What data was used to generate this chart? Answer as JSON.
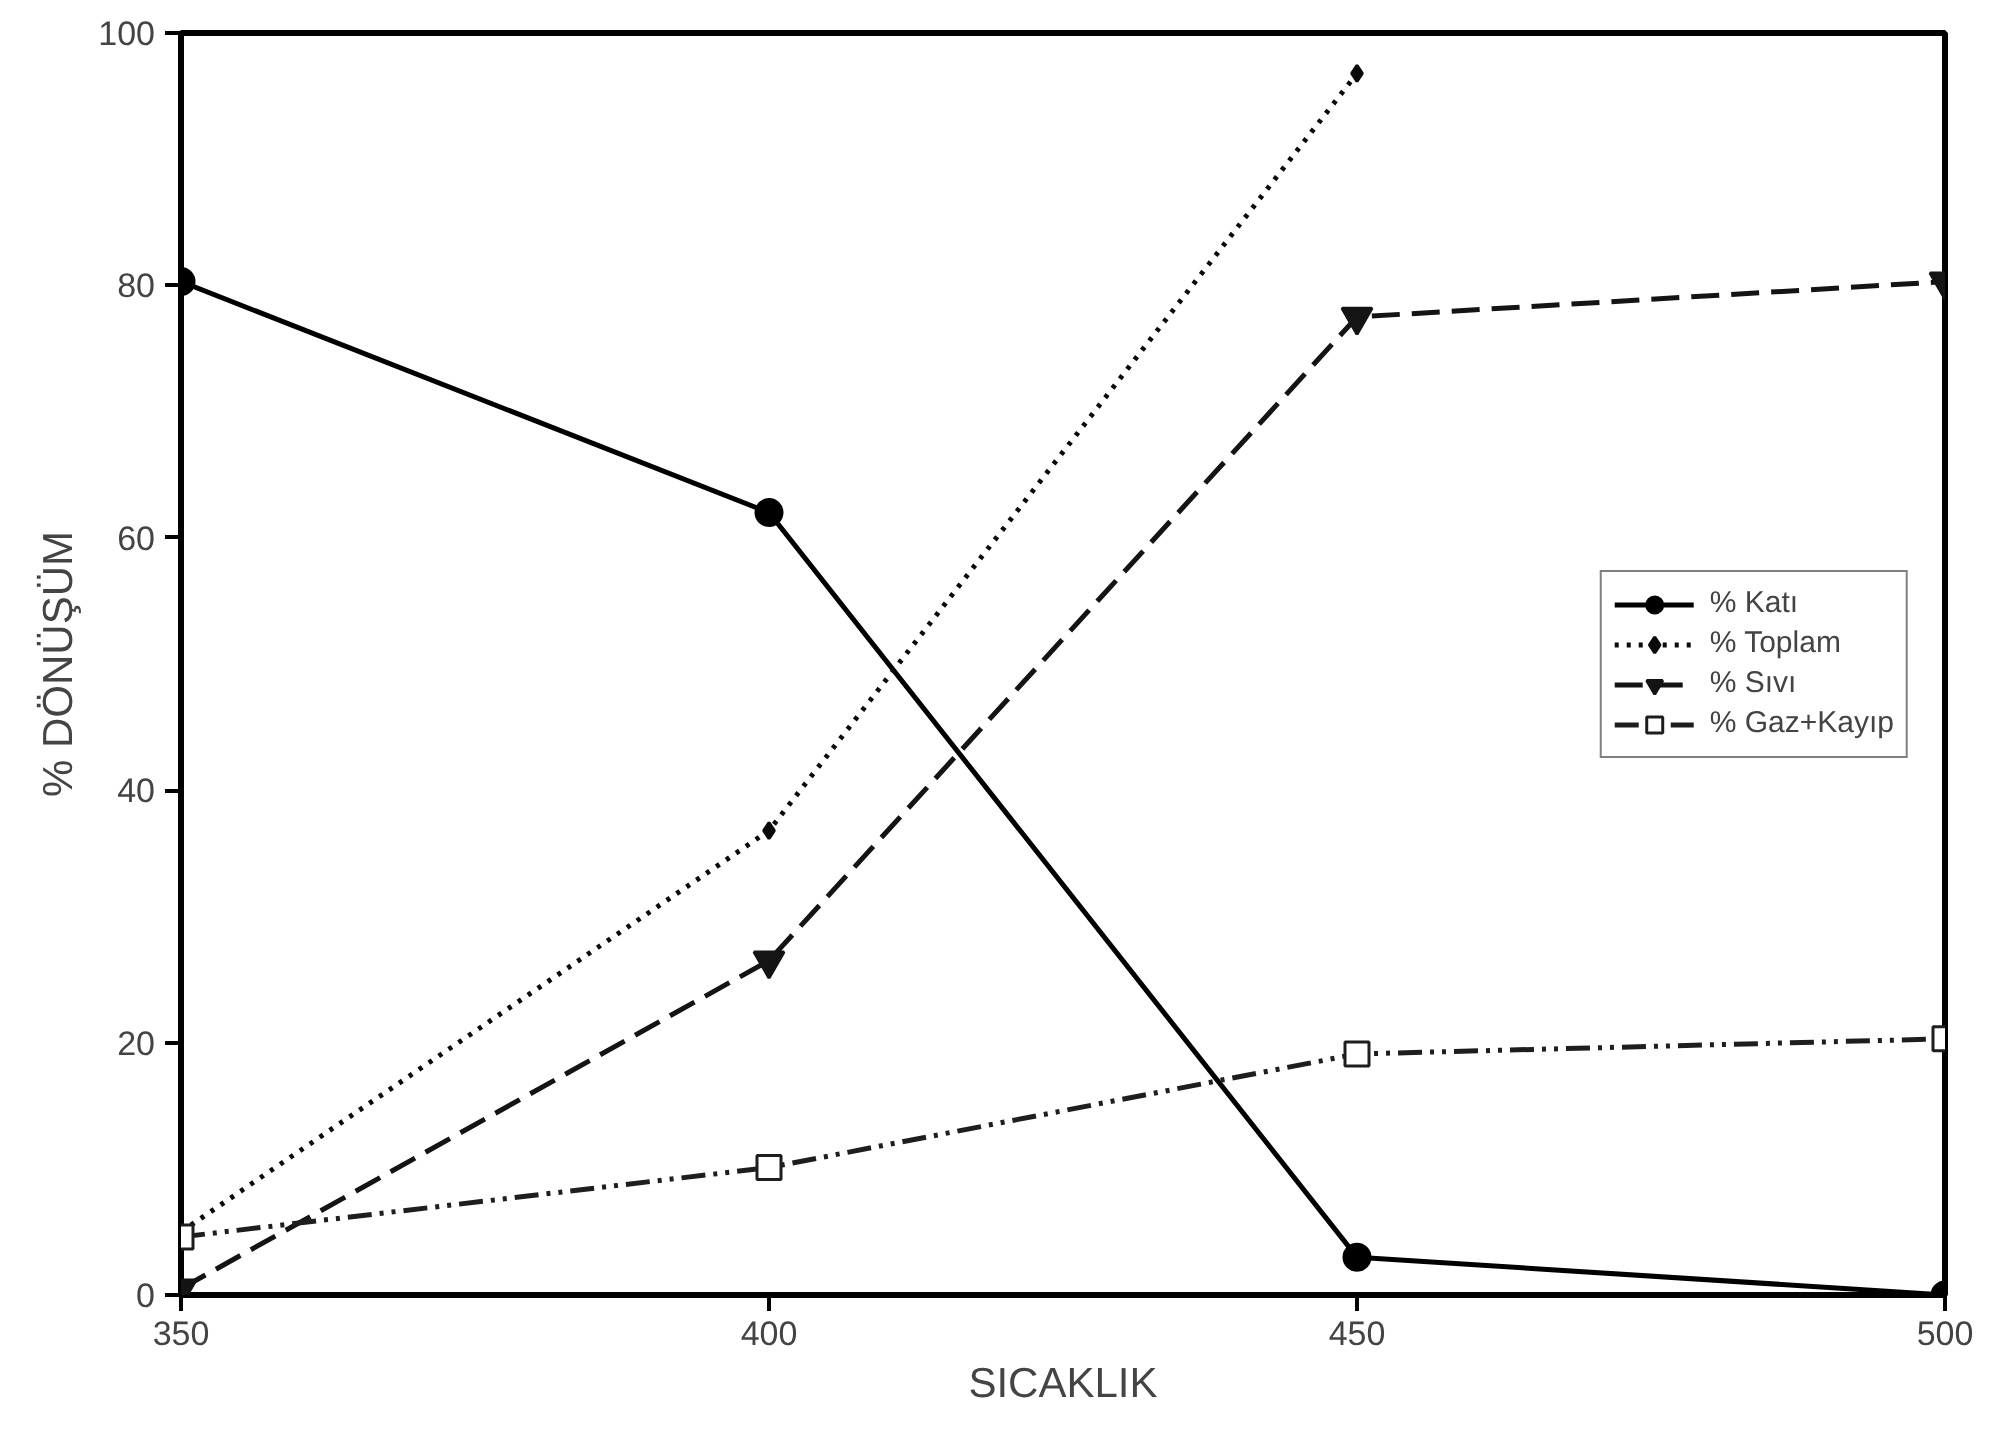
{
  "chart_data": {
    "type": "line",
    "xlabel": "SICAKLIK",
    "ylabel": "% DÖNÜŞÜM",
    "x": [
      350,
      400,
      450,
      500
    ],
    "series": [
      {
        "name": "% Katı",
        "color": "#000000",
        "values": [
          80.3,
          62,
          3,
          0
        ],
        "marker": "circle",
        "line_style": "solid"
      },
      {
        "name": "% Toplam",
        "color": "#0a0a0a",
        "values": [
          5,
          36.8,
          96.8,
          null
        ],
        "marker": "diamond",
        "line_style": "dotted"
      },
      {
        "name": "% Sıvı",
        "color": "#141414",
        "values": [
          0.5,
          26.5,
          77.5,
          80.3
        ],
        "marker": "triangle",
        "line_style": "dashed"
      },
      {
        "name": "% Gaz+Kayıp",
        "color": "#1e1e1e",
        "values": [
          4.6,
          10.1,
          19.1,
          20.3
        ],
        "marker": "square",
        "line_style": "dashdotdot"
      }
    ],
    "xlim": [
      350,
      500
    ],
    "ylim": [
      0,
      100
    ],
    "xticks": [
      350,
      400,
      450,
      500
    ],
    "yticks": [
      0,
      20,
      40,
      60,
      80,
      100
    ],
    "grid": false,
    "legend": "right"
  }
}
